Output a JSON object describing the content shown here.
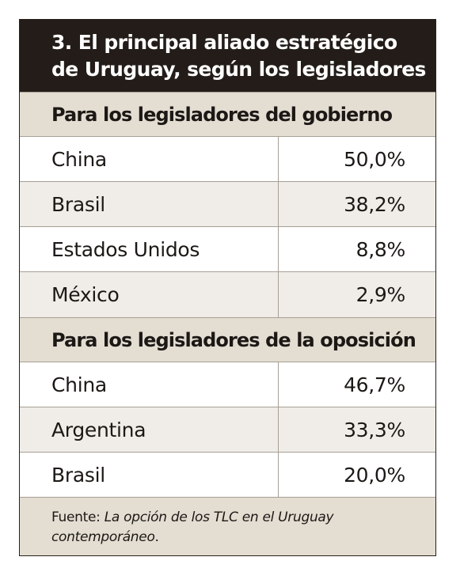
{
  "colors": {
    "title_background": "#231c18",
    "title_text": "#ffffff",
    "section_background": "#e3ddd2",
    "alt_row_background": "#f0ede8",
    "border": "#a79f94"
  },
  "chart_data": {
    "type": "table",
    "title_lines": [
      "3. El principal aliado estratégico",
      "de Uruguay, según los legisladores"
    ],
    "groups": [
      {
        "header": "Para los legisladores del gobierno",
        "rows": [
          {
            "country": "China",
            "value_text": "50,0%",
            "value": 50.0
          },
          {
            "country": "Brasil",
            "value_text": "38,2%",
            "value": 38.2
          },
          {
            "country": "Estados Unidos",
            "value_text": "8,8%",
            "value": 8.8
          },
          {
            "country": "México",
            "value_text": "2,9%",
            "value": 2.9
          }
        ]
      },
      {
        "header": "Para los legisladores de la oposición",
        "rows": [
          {
            "country": "China",
            "value_text": "46,7%",
            "value": 46.7
          },
          {
            "country": "Argentina",
            "value_text": "33,3%",
            "value": 33.3
          },
          {
            "country": "Brasil",
            "value_text": "20,0%",
            "value": 20.0
          }
        ]
      }
    ],
    "source": {
      "label": "Fuente:",
      "title": "La opción de los TLC  en el Uruguay contemporáneo",
      "end": "."
    }
  }
}
